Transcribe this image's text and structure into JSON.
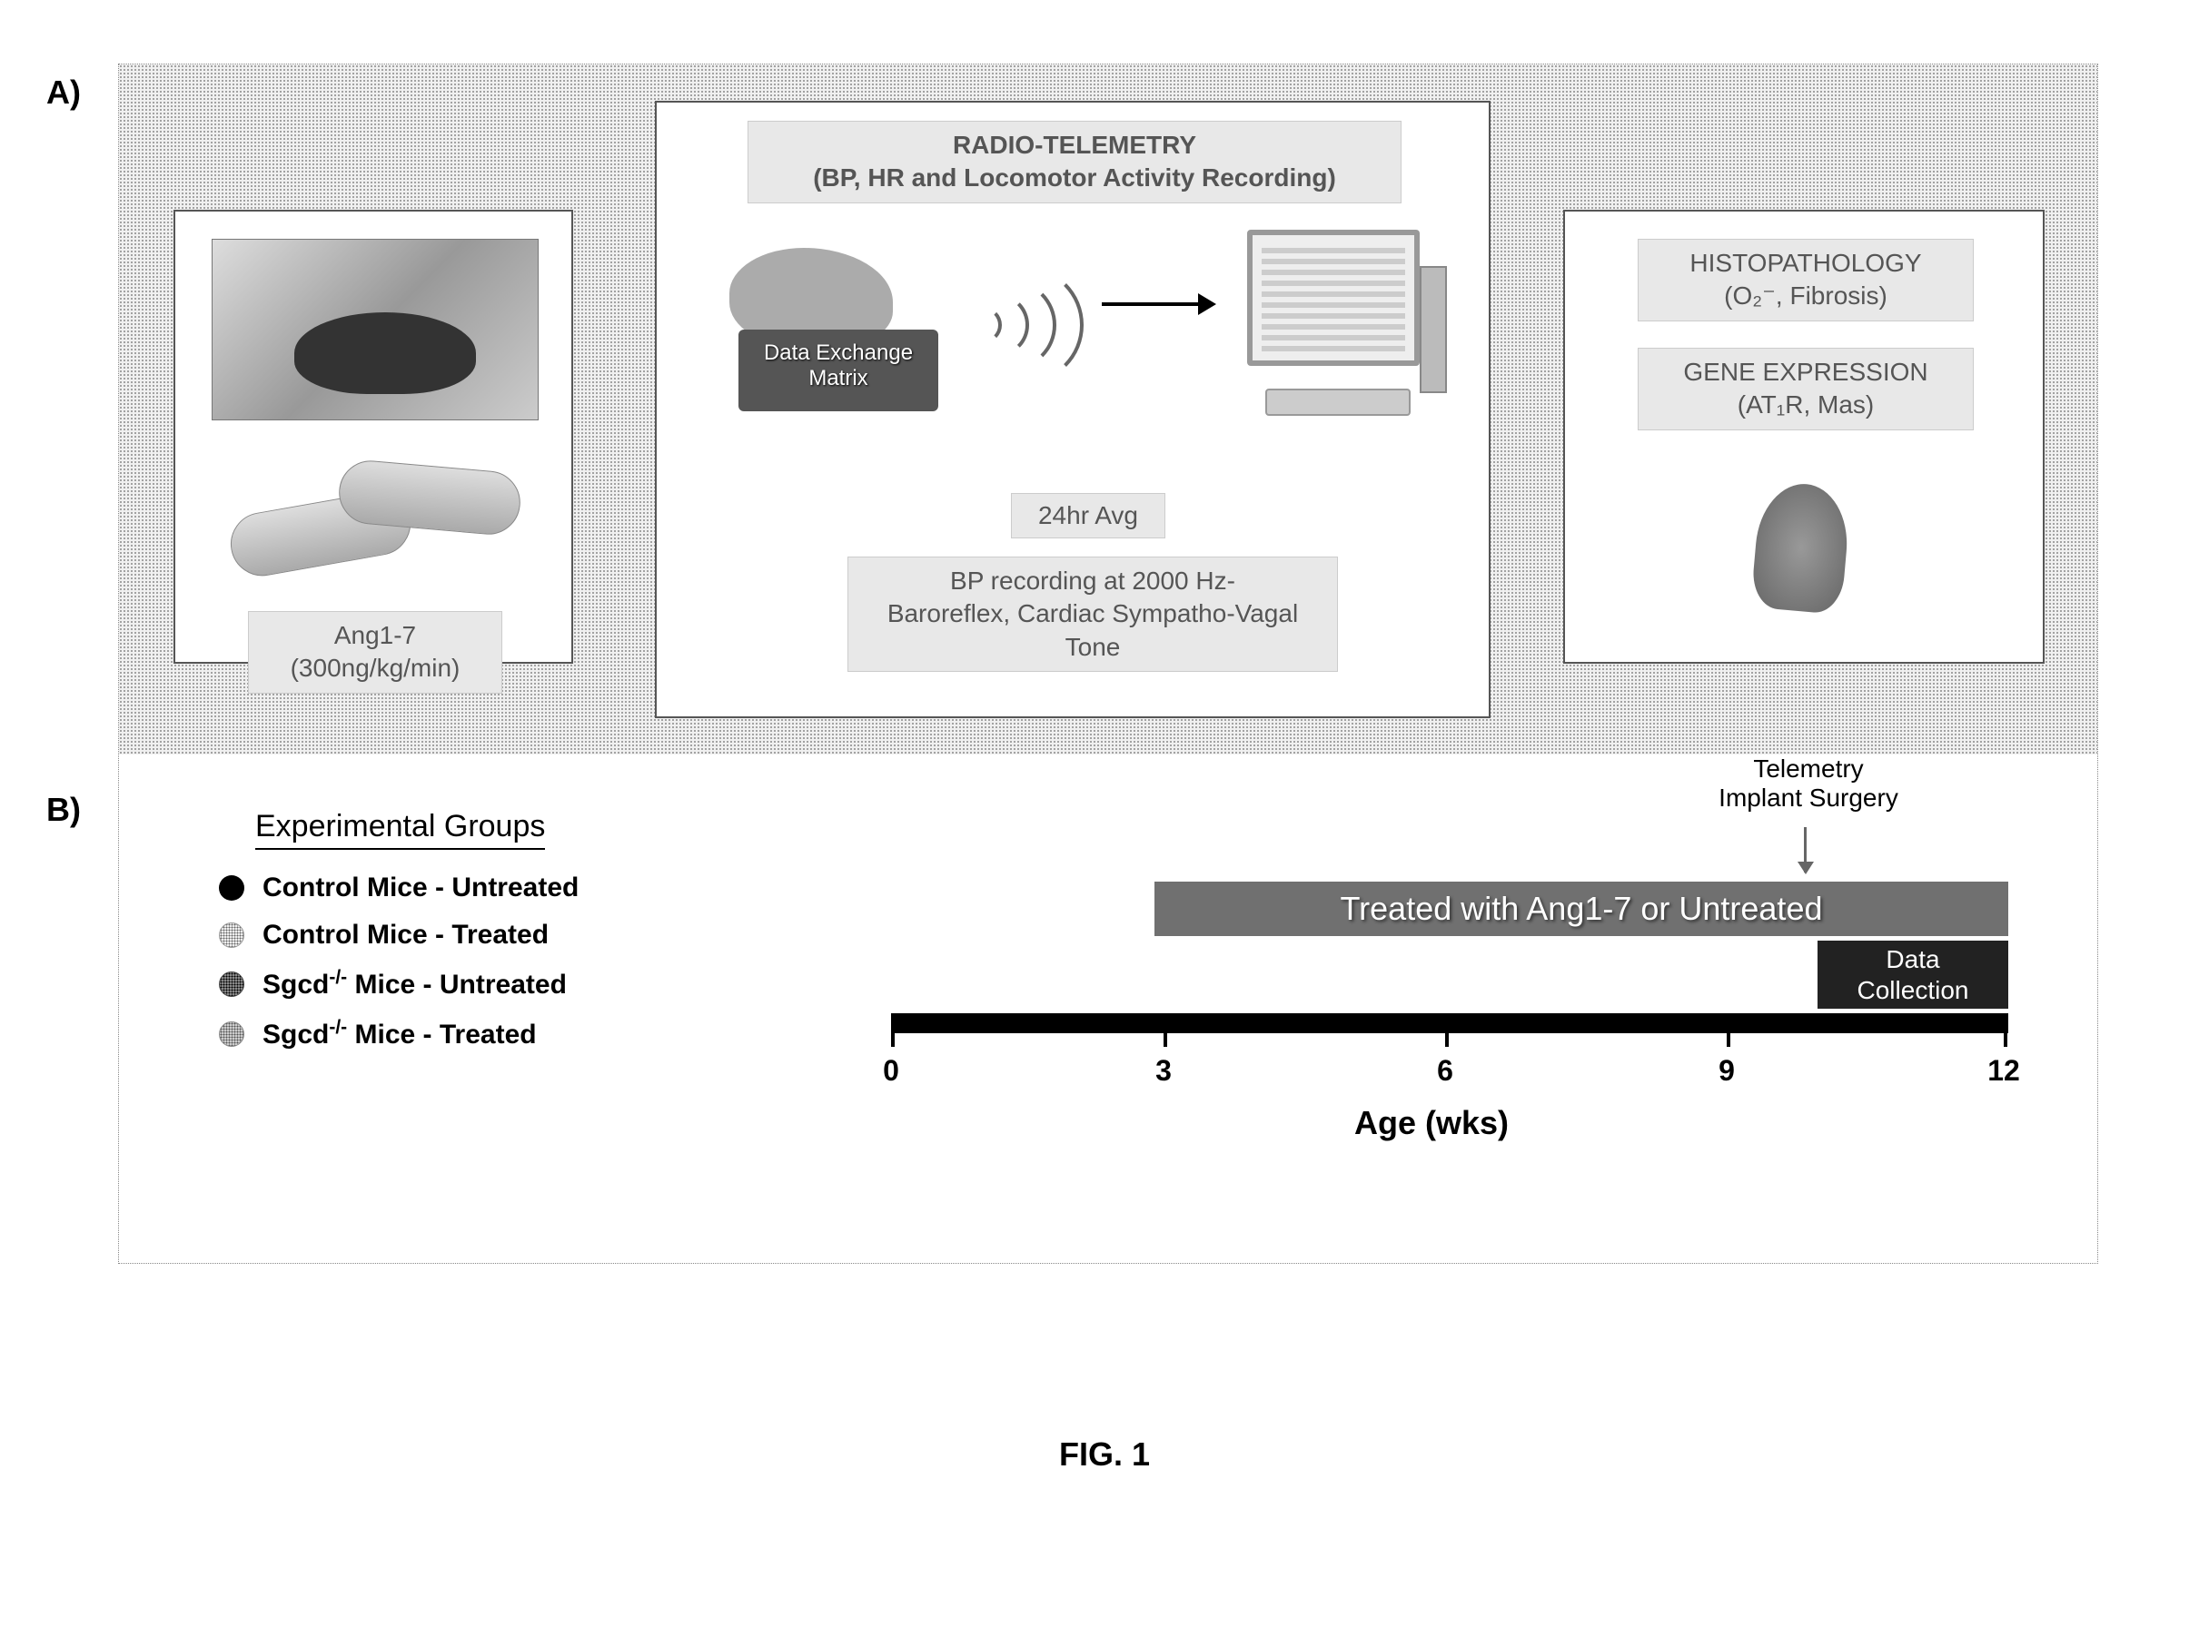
{
  "panels": {
    "a_label": "A)",
    "b_label": "B)"
  },
  "panel_a": {
    "left_box": {
      "drug_label": "Ang1-7\n(300ng/kg/min)"
    },
    "mid_box": {
      "title": "RADIO-TELEMETRY\n(BP, HR and Locomotor Activity Recording)",
      "dem_label": "Data Exchange\nMatrix",
      "avg_label": "24hr Avg",
      "bp_label": "BP recording at 2000 Hz-\nBaroreflex, Cardiac Sympatho-Vagal\nTone"
    },
    "right_box": {
      "histo_label": "HISTOPATHOLOGY\n(O₂⁻, Fibrosis)",
      "gene_label": "GENE EXPRESSION\n(AT₁R, Mas)"
    }
  },
  "panel_b": {
    "groups_title": "Experimental Groups",
    "groups": [
      {
        "bullet": "b-solid",
        "label_pre": "Control Mice",
        "label_post": " - Untreated",
        "knockout": false
      },
      {
        "bullet": "b-dotted-light",
        "label_pre": "Control Mice",
        "label_post": " - Treated",
        "knockout": false
      },
      {
        "bullet": "b-dotted-dark",
        "label_pre": "Sgcd",
        "label_post": " Mice - Untreated",
        "knockout": true
      },
      {
        "bullet": "b-dotted-med",
        "label_pre": "Sgcd",
        "label_post": " Mice - Treated",
        "knockout": true
      }
    ],
    "telemetry_label": "Telemetry\nImplant  Surgery",
    "treated_bar": "Treated with Ang1-7 or Untreated",
    "data_collection": "Data\nCollection",
    "axis": {
      "title": "Age (wks)",
      "ticks": [
        {
          "value": "0",
          "pos": -30
        },
        {
          "value": "3",
          "pos": 270
        },
        {
          "value": "6",
          "pos": 580
        },
        {
          "value": "9",
          "pos": 890
        },
        {
          "value": "12",
          "pos": 1195
        }
      ]
    }
  },
  "caption": "FIG. 1",
  "colors": {
    "background": "#ffffff",
    "panel_a_bg": "#f0f0f0",
    "box_border": "#555555",
    "light_label_bg": "#e8e8e8",
    "treated_bar_bg": "#707070",
    "data_coll_bg": "#222222",
    "axis_color": "#000000"
  }
}
